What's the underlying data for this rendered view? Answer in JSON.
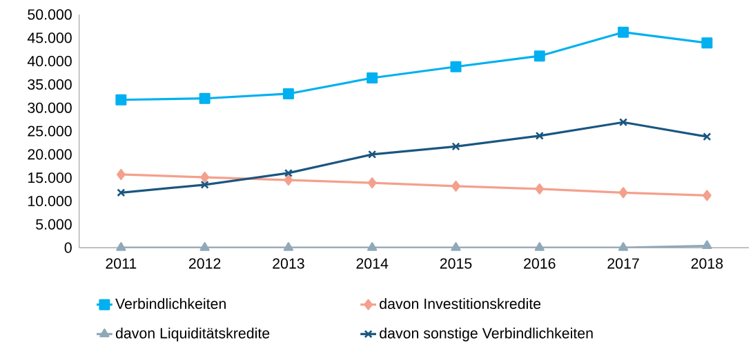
{
  "chart_data": {
    "type": "line",
    "categories": [
      "2011",
      "2012",
      "2013",
      "2014",
      "2015",
      "2016",
      "2017",
      "2018"
    ],
    "series": [
      {
        "name": "Verbindlichkeiten",
        "color": "#00b0f0",
        "marker": "square",
        "values": [
          31700,
          32000,
          33000,
          36400,
          38800,
          41100,
          46200,
          43900
        ]
      },
      {
        "name": "davon Investitionskredite",
        "color": "#f4a08c",
        "marker": "diamond",
        "values": [
          15700,
          15100,
          14500,
          13900,
          13200,
          12600,
          11800,
          11200
        ]
      },
      {
        "name": "davon Liquiditätskredite",
        "color": "#8fa9b9",
        "marker": "triangle",
        "values": [
          0,
          0,
          0,
          0,
          0,
          0,
          0,
          400
        ]
      },
      {
        "name": "davon sonstige Verbindlichkeiten",
        "color": "#1a5680",
        "marker": "cross",
        "values": [
          11800,
          13500,
          16000,
          20000,
          21700,
          24000,
          26900,
          23800
        ]
      }
    ],
    "ylim": [
      0,
      50000
    ],
    "yticks": [
      0,
      {
        "value": 5000,
        "label": "5.000"
      },
      {
        "value": 10000,
        "label": "10.000"
      },
      {
        "value": 15000,
        "label": "15.000"
      },
      {
        "value": 20000,
        "label": "20.000"
      },
      {
        "value": 25000,
        "label": "25.000"
      },
      {
        "value": 30000,
        "label": "30.000"
      },
      {
        "value": 35000,
        "label": "35.000"
      },
      {
        "value": 40000,
        "label": "40.000"
      },
      {
        "value": 45000,
        "label": "45.000"
      },
      {
        "value": 50000,
        "label": "50.000"
      }
    ],
    "grid": false,
    "legend": "bottom",
    "line_style": "solid"
  }
}
